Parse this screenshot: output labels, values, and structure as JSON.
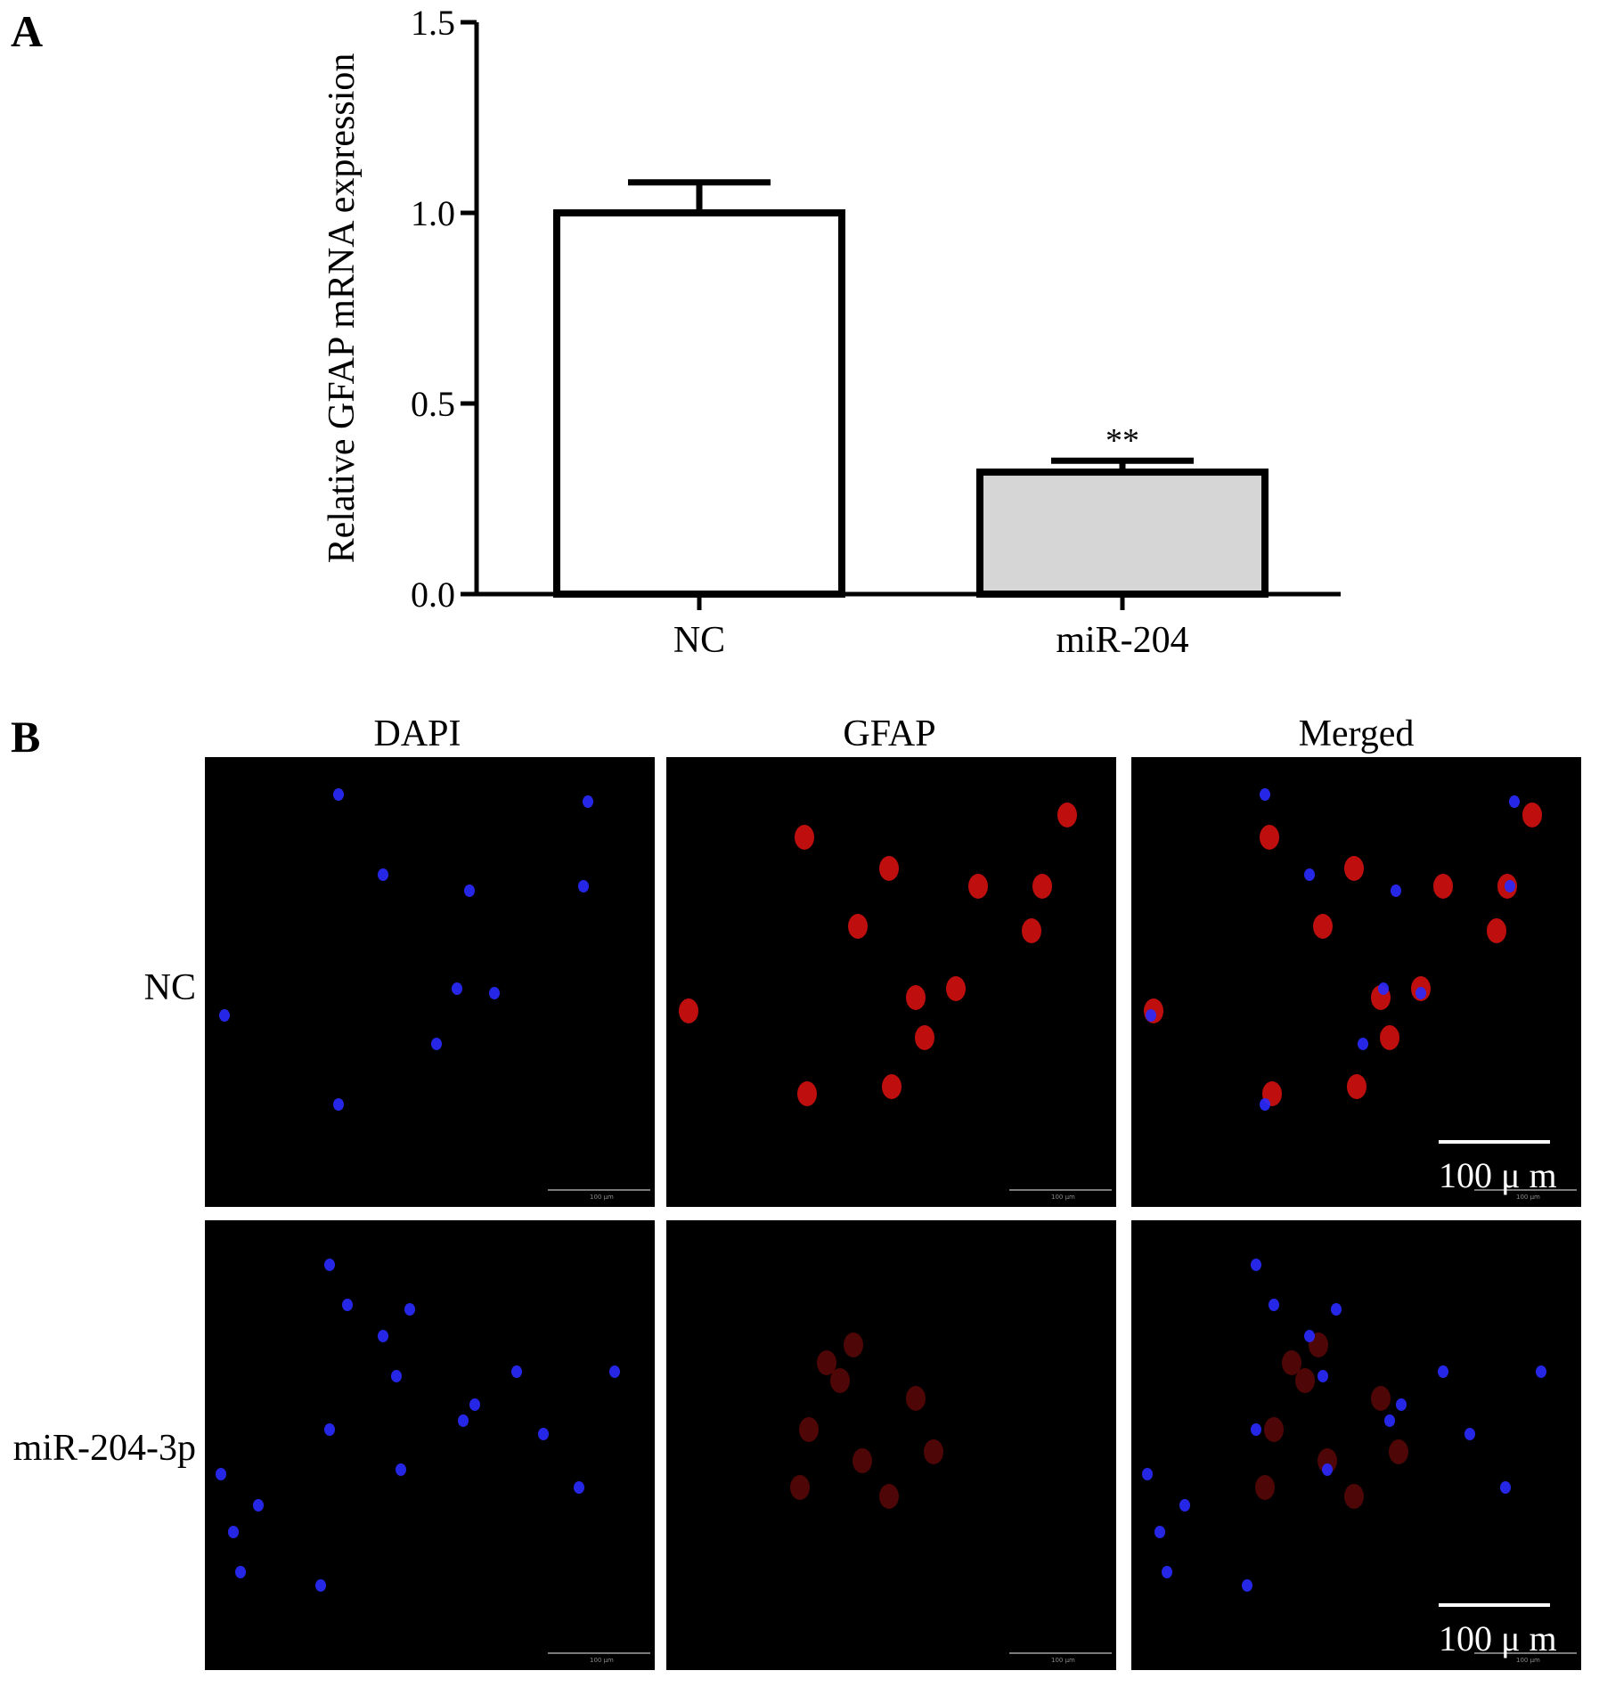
{
  "panel_a_label": "A",
  "panel_b_label": "B",
  "chart_data": {
    "type": "bar",
    "categories": [
      "NC",
      "miR-204"
    ],
    "values": [
      1.0,
      0.32
    ],
    "errors": [
      0.08,
      0.03
    ],
    "bar_colors": [
      "#ffffff",
      "#d6d6d6"
    ],
    "significance": [
      "",
      "**"
    ],
    "xlabel": "",
    "ylabel": "Relative  GFAP mRNA expression",
    "ylim": [
      0,
      1.5
    ],
    "yticks": [
      "0.0",
      "0.5",
      "1.0",
      "1.5"
    ],
    "grid": false,
    "legend": "none"
  },
  "microscopy": {
    "column_titles": [
      "DAPI",
      "GFAP",
      "Merged"
    ],
    "row_labels": [
      "NC",
      "miR-204-3p"
    ],
    "channel_colors": {
      "dapi": "#2a2aff",
      "gfap": "#e01010",
      "background": "#000000"
    },
    "scale_bar_label": "100 μ m",
    "tiny_scale_label": "100 µm"
  }
}
